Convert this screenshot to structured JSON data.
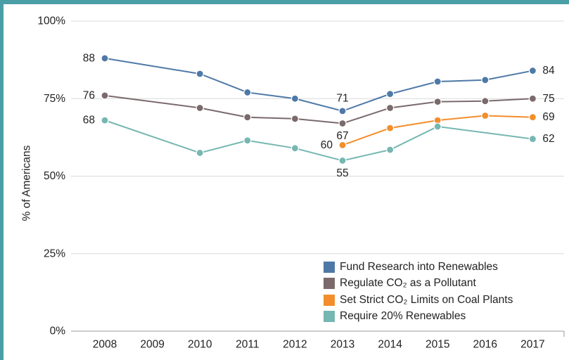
{
  "chart_data": {
    "type": "line",
    "ylabel": "% of Americans",
    "xlabel": "",
    "ylim": [
      0,
      100
    ],
    "y_ticks": [
      "0%",
      "25%",
      "50%",
      "75%",
      "100%"
    ],
    "y_tick_values": [
      0,
      25,
      50,
      75,
      100
    ],
    "categories": [
      "2008",
      "2009",
      "2010",
      "2011",
      "2012",
      "2013",
      "2014",
      "2015",
      "2016",
      "2017"
    ],
    "grid": true,
    "legend_position": "bottom-right",
    "series": [
      {
        "name": "Fund Research into Renewables",
        "color": "#4e79a7",
        "points": [
          [
            0,
            88
          ],
          [
            2,
            83
          ],
          [
            3,
            77
          ],
          [
            4,
            75
          ],
          [
            5,
            71
          ],
          [
            6,
            76.5
          ],
          [
            7,
            80.5
          ],
          [
            8,
            81
          ],
          [
            9,
            84
          ]
        ],
        "labels": [
          {
            "index": 0,
            "text": "88",
            "pos": "left"
          },
          {
            "index": 4,
            "text": "71",
            "pos": "above"
          },
          {
            "index": 8,
            "text": "84",
            "pos": "right"
          }
        ]
      },
      {
        "name": "Regulate CO2 as a Pollutant",
        "color": "#7a6a6c",
        "points": [
          [
            0,
            76
          ],
          [
            2,
            72
          ],
          [
            3,
            69
          ],
          [
            4,
            68.5
          ],
          [
            5,
            67
          ],
          [
            6,
            72
          ],
          [
            7,
            74
          ],
          [
            8,
            74.2
          ],
          [
            9,
            75
          ]
        ],
        "labels": [
          {
            "index": 0,
            "text": "76",
            "pos": "left"
          },
          {
            "index": 4,
            "text": "67",
            "pos": "below"
          },
          {
            "index": 8,
            "text": "75",
            "pos": "right"
          }
        ]
      },
      {
        "name": "Set Strict CO2 Limits on Coal Plants",
        "color": "#f28e2b",
        "points": [
          [
            5,
            60
          ],
          [
            6,
            65.5
          ],
          [
            7,
            68
          ],
          [
            8,
            69.5
          ],
          [
            9,
            69
          ]
        ],
        "labels": [
          {
            "index": 0,
            "text": "60",
            "pos": "left"
          },
          {
            "index": 4,
            "text": "69",
            "pos": "right"
          }
        ]
      },
      {
        "name": "Require 20% Renewables",
        "color": "#76b7b2",
        "points": [
          [
            0,
            68
          ],
          [
            2,
            57.5
          ],
          [
            3,
            61.5
          ],
          [
            4,
            59
          ],
          [
            5,
            55
          ],
          [
            6,
            58.5
          ],
          [
            7,
            66
          ],
          [
            9,
            62
          ]
        ],
        "labels": [
          {
            "index": 0,
            "text": "68",
            "pos": "left"
          },
          {
            "index": 4,
            "text": "55",
            "pos": "below"
          },
          {
            "index": 7,
            "text": "62",
            "pos": "right"
          }
        ]
      }
    ],
    "legend": [
      {
        "color": "#4e79a7",
        "label": "Fund Research into Renewables"
      },
      {
        "color": "#7a6a6c",
        "label": "Regulate CO₂ as a Pollutant"
      },
      {
        "color": "#f28e2b",
        "label": "Set Strict CO₂ Limits on Coal Plants"
      },
      {
        "color": "#76b7b2",
        "label": "Require 20% Renewables"
      }
    ]
  }
}
